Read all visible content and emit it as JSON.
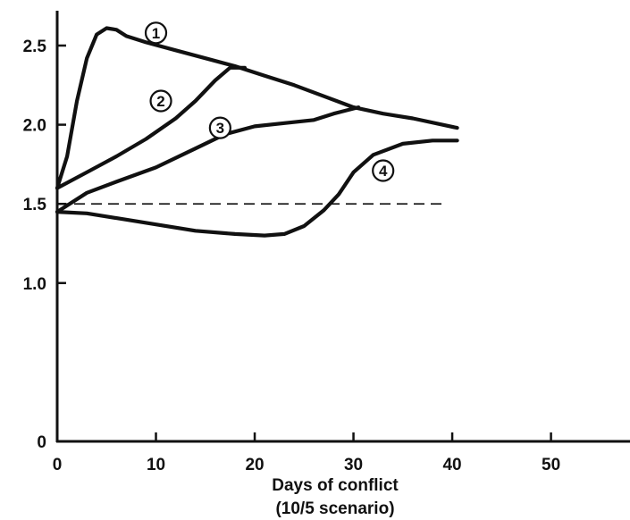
{
  "chart_data": {
    "type": "line",
    "xlabel": "Days of conflict",
    "xlabel_sub": "(10/5 scenario)",
    "ylabel": "",
    "xlim": [
      0,
      58
    ],
    "ylim": [
      0,
      2.72
    ],
    "x_ticks": [
      0,
      10,
      20,
      30,
      40,
      50
    ],
    "y_ticks": [
      0,
      1.0,
      1.5,
      2.0,
      2.5
    ],
    "y_tick_labels": [
      "0",
      "1.0",
      "1.5",
      "2.0",
      "2.5"
    ],
    "grid": false,
    "reference_line": {
      "y": 1.5,
      "x_range": [
        0,
        39
      ],
      "style": "dashed"
    },
    "series": [
      {
        "name": "①",
        "label_at": [
          10,
          2.58
        ],
        "points": [
          [
            0,
            1.6
          ],
          [
            1,
            1.8
          ],
          [
            2,
            2.15
          ],
          [
            3,
            2.42
          ],
          [
            4,
            2.57
          ],
          [
            5,
            2.61
          ],
          [
            6,
            2.6
          ],
          [
            7,
            2.56
          ],
          [
            9,
            2.52
          ],
          [
            12,
            2.47
          ],
          [
            15,
            2.42
          ],
          [
            18,
            2.37
          ],
          [
            21,
            2.31
          ],
          [
            24,
            2.25
          ],
          [
            27,
            2.18
          ],
          [
            30,
            2.11
          ],
          [
            33,
            2.07
          ],
          [
            36,
            2.04
          ],
          [
            39,
            2.0
          ],
          [
            40.5,
            1.98
          ]
        ]
      },
      {
        "name": "②",
        "label_at": [
          10.5,
          2.15
        ],
        "points": [
          [
            0,
            1.6
          ],
          [
            3,
            1.7
          ],
          [
            6,
            1.8
          ],
          [
            9,
            1.91
          ],
          [
            12,
            2.04
          ],
          [
            14,
            2.15
          ],
          [
            16,
            2.28
          ],
          [
            17.5,
            2.36
          ],
          [
            19,
            2.36
          ]
        ]
      },
      {
        "name": "③",
        "label_at": [
          16.5,
          1.98
        ],
        "points": [
          [
            0,
            1.45
          ],
          [
            3,
            1.57
          ],
          [
            6,
            1.64
          ],
          [
            10,
            1.73
          ],
          [
            14,
            1.85
          ],
          [
            17,
            1.94
          ],
          [
            20,
            1.99
          ],
          [
            23,
            2.01
          ],
          [
            26,
            2.03
          ],
          [
            28,
            2.07
          ],
          [
            30.5,
            2.11
          ]
        ]
      },
      {
        "name": "④",
        "label_at": [
          33,
          1.71
        ],
        "points": [
          [
            0,
            1.45
          ],
          [
            3,
            1.44
          ],
          [
            6,
            1.41
          ],
          [
            10,
            1.37
          ],
          [
            14,
            1.33
          ],
          [
            18,
            1.31
          ],
          [
            21,
            1.3
          ],
          [
            23,
            1.31
          ],
          [
            25,
            1.36
          ],
          [
            27,
            1.46
          ],
          [
            28.5,
            1.56
          ],
          [
            30,
            1.7
          ],
          [
            32,
            1.81
          ],
          [
            35,
            1.88
          ],
          [
            38,
            1.9
          ],
          [
            40.5,
            1.9
          ]
        ]
      }
    ]
  }
}
